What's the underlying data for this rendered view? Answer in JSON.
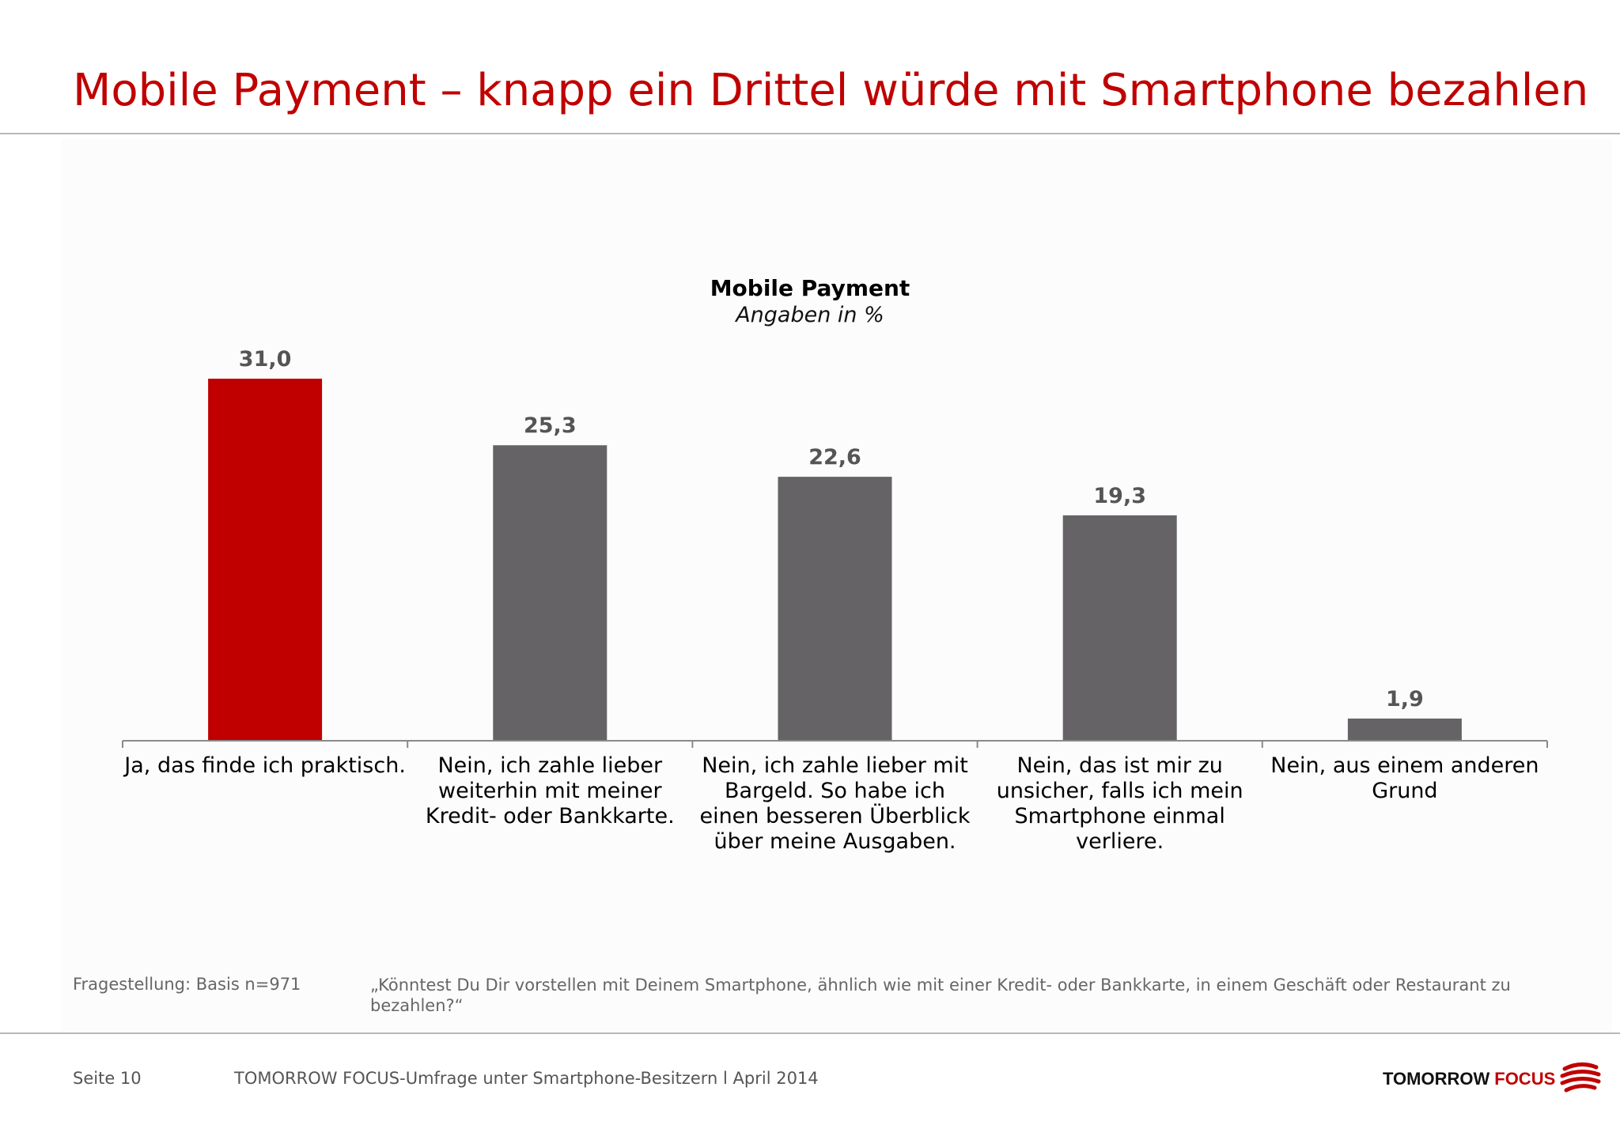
{
  "header": {
    "title": "Mobile Payment – knapp ein Drittel würde mit Smartphone bezahlen"
  },
  "chart_data": {
    "type": "bar",
    "title": "Mobile Payment",
    "subtitle": "Angaben in %",
    "categories": [
      "Ja, das finde ich praktisch.",
      "Nein, ich zahle lieber weiterhin mit meiner Kredit- oder Bankkarte.",
      "Nein, ich zahle lieber mit Bargeld. So habe ich einen besseren Überblick über meine Ausgaben.",
      "Nein, das ist mir zu unsicher, falls ich mein Smartphone einmal verliere.",
      "Nein, aus einem anderen Grund"
    ],
    "values": [
      31.0,
      25.3,
      22.6,
      19.3,
      1.9
    ],
    "value_labels": [
      "31,0",
      "25,3",
      "22,6",
      "19,3",
      "1,9"
    ],
    "bar_colors": [
      "#c00000",
      "#656366",
      "#656366",
      "#656366",
      "#656366"
    ],
    "label_color": "#555555",
    "ylim": [
      0,
      31
    ],
    "grid": false,
    "legend": "none"
  },
  "footer": {
    "question_label": "Fragestellung: Basis n=971",
    "question_text": "„Könntest Du Dir vorstellen mit Deinem Smartphone, ähnlich wie mit einer Kredit- oder Bankkarte, in einem Geschäft oder Restaurant zu bezahlen?“",
    "page": "Seite 10",
    "source": "TOMORROW FOCUS-Umfrage unter Smartphone-Besitzern l April 2014",
    "logo_part1": "TOMORROW",
    "logo_part2": "FOCUS"
  },
  "colors": {
    "accent": "#c00000",
    "bar_gray": "#656366"
  }
}
